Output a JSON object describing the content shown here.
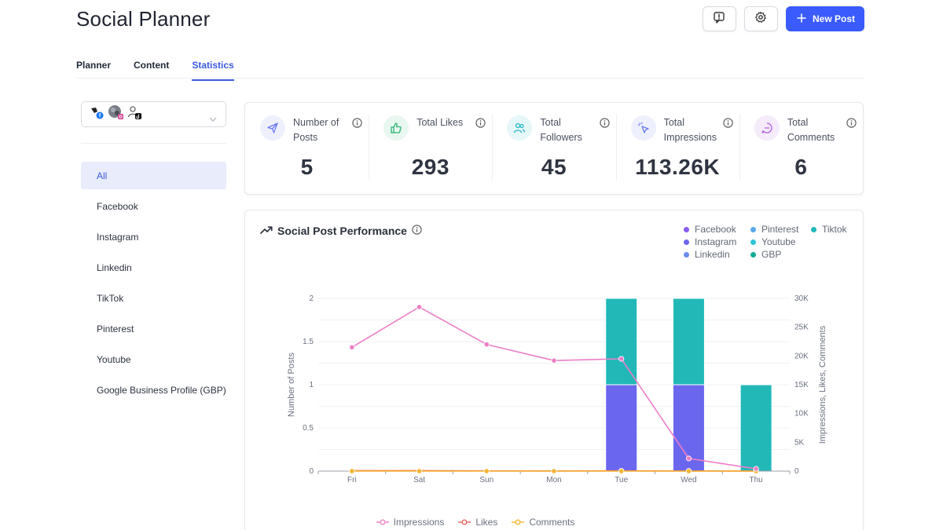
{
  "header": {
    "title": "Social Planner",
    "new_post_label": "New Post",
    "accent": "#3b5bfd"
  },
  "tabs": [
    {
      "label": "Planner",
      "active": false
    },
    {
      "label": "Content",
      "active": false
    },
    {
      "label": "Statistics",
      "active": true
    }
  ],
  "sidebar": {
    "items": [
      {
        "label": "All",
        "active": true
      },
      {
        "label": "Facebook",
        "active": false
      },
      {
        "label": "Instagram",
        "active": false
      },
      {
        "label": "Linkedin",
        "active": false
      },
      {
        "label": "TikTok",
        "active": false
      },
      {
        "label": "Pinterest",
        "active": false
      },
      {
        "label": "Youtube",
        "active": false
      },
      {
        "label": "Google Business Profile (GBP)",
        "active": false
      }
    ]
  },
  "stats": [
    {
      "label": "Number of Posts",
      "value": "5",
      "icon": "send-icon",
      "color": "#6b7cf0",
      "bg": "#eef0fd"
    },
    {
      "label": "Total Likes",
      "value": "293",
      "icon": "thumbs-up-icon",
      "color": "#2bb673",
      "bg": "#e8f7ef"
    },
    {
      "label": "Total Followers",
      "value": "45",
      "icon": "users-icon",
      "color": "#1fb5c9",
      "bg": "#e6f7f9"
    },
    {
      "label": "Total Impressions",
      "value": "113.26K",
      "icon": "pointer-click-icon",
      "color": "#6b7cf0",
      "bg": "#eef0fd"
    },
    {
      "label": "Total Comments",
      "value": "6",
      "icon": "chat-icon",
      "color": "#b15be0",
      "bg": "#f5ebfb"
    }
  ],
  "chart_card": {
    "title": "Social Post Performance"
  },
  "chart_data": {
    "type": "bar",
    "categories": [
      "Fri",
      "Sat",
      "Sun",
      "Mon",
      "Tue",
      "Wed",
      "Thu"
    ],
    "stacked": true,
    "series": [
      {
        "name": "Facebook",
        "color": "#8b5cf6",
        "values": [
          0,
          0,
          0,
          0,
          0,
          0,
          0
        ],
        "axis": "left",
        "kind": "bar"
      },
      {
        "name": "Pinterest",
        "color": "#5aa8e8",
        "values": [
          0,
          0,
          0,
          0,
          0,
          0,
          0
        ],
        "axis": "left",
        "kind": "bar"
      },
      {
        "name": "Tiktok",
        "color": "#22b8b8",
        "values": [
          0,
          0,
          0,
          0,
          1,
          1,
          1
        ],
        "axis": "left",
        "kind": "bar"
      },
      {
        "name": "Instagram",
        "color": "#6b66ee",
        "values": [
          0,
          0,
          0,
          0,
          1,
          1,
          0
        ],
        "axis": "left",
        "kind": "bar"
      },
      {
        "name": "Youtube",
        "color": "#2ec4d6",
        "values": [
          0,
          0,
          0,
          0,
          0,
          0,
          0
        ],
        "axis": "left",
        "kind": "bar"
      },
      {
        "name": "Linkedin",
        "color": "#6c8df0",
        "values": [
          0,
          0,
          0,
          0,
          0,
          0,
          0
        ],
        "axis": "left",
        "kind": "bar"
      },
      {
        "name": "GBP",
        "color": "#14a89a",
        "values": [
          0,
          0,
          0,
          0,
          0,
          0,
          0
        ],
        "axis": "left",
        "kind": "bar"
      },
      {
        "name": "Impressions",
        "color": "#ec7ec8",
        "values": [
          21500,
          28500,
          22000,
          19200,
          19500,
          2200,
          400
        ],
        "axis": "right",
        "kind": "line"
      },
      {
        "name": "Likes",
        "color": "#f0605a",
        "values": [
          80,
          70,
          40,
          30,
          40,
          20,
          13
        ],
        "axis": "right",
        "kind": "line"
      },
      {
        "name": "Comments",
        "color": "#f5b431",
        "values": [
          2,
          1,
          1,
          0,
          1,
          1,
          0
        ],
        "axis": "right",
        "kind": "line"
      }
    ],
    "legend_top": [
      {
        "name": "Facebook",
        "color": "#8b5cf6"
      },
      {
        "name": "Pinterest",
        "color": "#5aa8e8"
      },
      {
        "name": "Tiktok",
        "color": "#22b8b8"
      },
      {
        "name": "Instagram",
        "color": "#6b66ee"
      },
      {
        "name": "Youtube",
        "color": "#2ec4d6"
      },
      {
        "name": "Linkedin",
        "color": "#6c8df0"
      },
      {
        "name": "GBP",
        "color": "#14a89a"
      }
    ],
    "legend_bottom": [
      {
        "name": "Impressions",
        "color": "#ec7ec8"
      },
      {
        "name": "Likes",
        "color": "#f0605a"
      },
      {
        "name": "Comments",
        "color": "#f5b431"
      }
    ],
    "ylabel": "Number of Posts",
    "ylim": [
      0,
      2
    ],
    "yticks": [
      "0",
      "0.5",
      "1",
      "1.5",
      "2"
    ],
    "y2label": "Impressions, Likes, Comments",
    "y2lim": [
      0,
      30000
    ],
    "y2ticks": [
      "0",
      "5K",
      "10K",
      "15K",
      "20K",
      "25K",
      "30K"
    ],
    "grid": true
  }
}
